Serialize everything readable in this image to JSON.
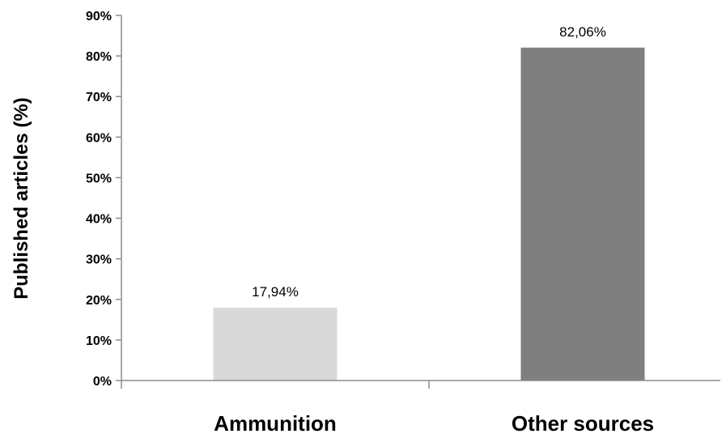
{
  "chart_data": {
    "type": "bar",
    "categories": [
      "Ammunition",
      "Other sources"
    ],
    "values": [
      17.94,
      82.06
    ],
    "value_labels": [
      "17,94%",
      "82,06%"
    ],
    "bar_colors": [
      "#d9d9d9",
      "#7f7f7f"
    ],
    "title": "",
    "xlabel": "",
    "ylabel": "Published articles (%)",
    "ylim": [
      0,
      90
    ],
    "yticks": [
      0,
      10,
      20,
      30,
      40,
      50,
      60,
      70,
      80,
      90
    ],
    "ytick_labels": [
      "0%",
      "10%",
      "20%",
      "30%",
      "40%",
      "50%",
      "60%",
      "70%",
      "80%",
      "90%"
    ],
    "grid": false,
    "legend": "none"
  }
}
